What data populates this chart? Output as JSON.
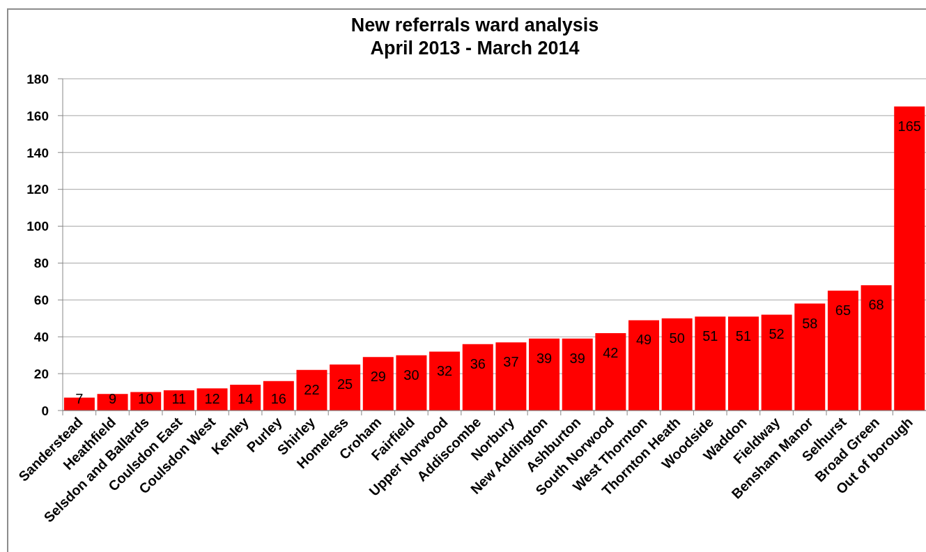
{
  "chart_data": {
    "type": "bar",
    "title": "New referrals ward analysis",
    "subtitle": "April 2013 - March 2014",
    "categories": [
      "Sanderstead",
      "Heathfield",
      "Selsdon and Ballards",
      "Coulsdon East",
      "Coulsdon West",
      "Kenley",
      "Purley",
      "Shirley",
      "Homeless",
      "Croham",
      "Fairfield",
      "Upper Norwood",
      "Addiscombe",
      "Norbury",
      "New Addington",
      "Ashburton",
      "South Norwood",
      "West Thornton",
      "Thornton Heath",
      "Woodside",
      "Waddon",
      "Fieldway",
      "Bensham Manor",
      "Selhurst",
      "Broad Green",
      "Out of borough"
    ],
    "values": [
      7,
      9,
      10,
      11,
      12,
      14,
      16,
      22,
      25,
      29,
      30,
      32,
      36,
      37,
      39,
      39,
      42,
      49,
      50,
      51,
      51,
      52,
      58,
      65,
      68,
      165
    ],
    "color": "#ff0000",
    "ylim": [
      0,
      180
    ],
    "yticks": [
      0,
      20,
      40,
      60,
      80,
      100,
      120,
      140,
      160,
      180
    ],
    "grid": "y",
    "data_labels": true
  }
}
